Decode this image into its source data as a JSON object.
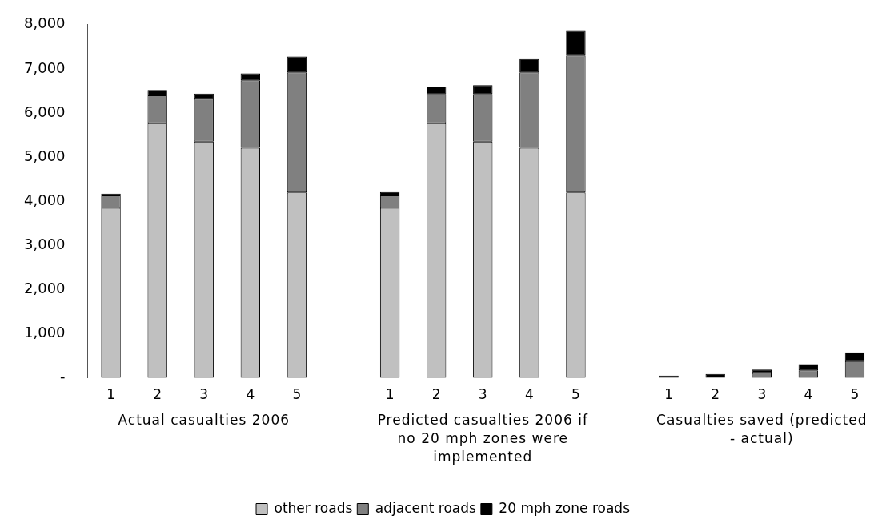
{
  "chart_data": {
    "type": "bar",
    "stacked": true,
    "categories": [
      "1",
      "2",
      "3",
      "4",
      "5",
      null,
      "1",
      "2",
      "3",
      "4",
      "5",
      null,
      "1",
      "2",
      "3",
      "4",
      "5"
    ],
    "series": [
      {
        "name": "other roads",
        "color": "#c0c0c0",
        "values": [
          3850,
          5770,
          5350,
          5210,
          4200,
          null,
          3850,
          5770,
          5350,
          5210,
          4200,
          null,
          0,
          0,
          0,
          0,
          0
        ]
      },
      {
        "name": "adjacent roads",
        "color": "#808080",
        "values": [
          280,
          630,
          970,
          1530,
          2720,
          null,
          280,
          650,
          1080,
          1710,
          3100,
          null,
          0,
          0,
          110,
          170,
          380
        ]
      },
      {
        "name": "20 mph zone roads",
        "color": "#000000",
        "values": [
          40,
          120,
          120,
          160,
          360,
          null,
          80,
          180,
          200,
          300,
          560,
          null,
          50,
          90,
          80,
          140,
          200
        ]
      }
    ],
    "ylim": [
      0,
      8000
    ],
    "yticks": [
      {
        "value": 0,
        "label": "-"
      },
      {
        "value": 1000,
        "label": "1,000"
      },
      {
        "value": 2000,
        "label": "2,000"
      },
      {
        "value": 3000,
        "label": "3,000"
      },
      {
        "value": 4000,
        "label": "4,000"
      },
      {
        "value": 5000,
        "label": "5,000"
      },
      {
        "value": 6000,
        "label": "6,000"
      },
      {
        "value": 7000,
        "label": "7,000"
      },
      {
        "value": 8000,
        "label": "8,000"
      }
    ],
    "annotations": [
      "Actual casualties 2006",
      "Predicted casualties 2006 if no 20 mph zones were implemented",
      "Casualties saved (predicted - actual)"
    ],
    "grid": false,
    "legend": "bottom"
  }
}
